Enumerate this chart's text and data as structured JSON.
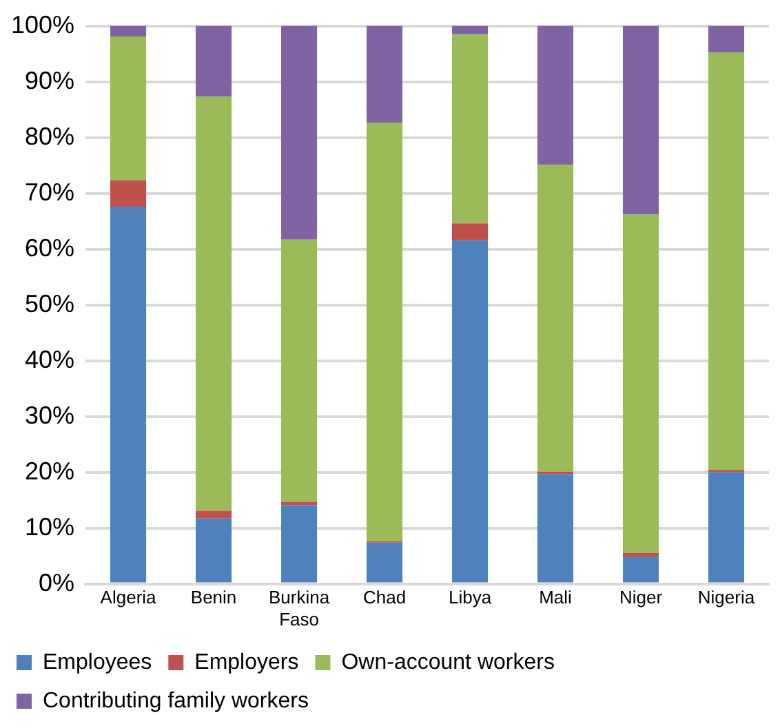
{
  "chart_data": {
    "type": "bar",
    "stacked": true,
    "categories": [
      "Algeria",
      "Benin",
      "Burkina Faso",
      "Chad",
      "Libya",
      "Mali",
      "Niger",
      "Nigeria"
    ],
    "series": [
      {
        "name": "Employees",
        "color": "#4f81bd",
        "values": [
          67.6,
          11.7,
          14.1,
          7.4,
          61.6,
          19.6,
          4.9,
          20.0
        ]
      },
      {
        "name": "Employers",
        "color": "#c0504d",
        "values": [
          4.7,
          1.4,
          0.6,
          0.2,
          3.0,
          0.5,
          0.6,
          0.4
        ]
      },
      {
        "name": "Own-account workers",
        "color": "#9bbb59",
        "values": [
          25.8,
          74.2,
          47.0,
          75.0,
          33.9,
          55.0,
          60.7,
          74.8
        ]
      },
      {
        "name": "Contributing family workers",
        "color": "#8064a2",
        "values": [
          1.9,
          12.7,
          38.3,
          17.4,
          1.5,
          24.9,
          33.8,
          4.8
        ]
      }
    ],
    "ylim": [
      0,
      100
    ],
    "yticks": [
      {
        "value": 0,
        "label": "0%"
      },
      {
        "value": 10,
        "label": "10%"
      },
      {
        "value": 20,
        "label": "20%"
      },
      {
        "value": 30,
        "label": "30%"
      },
      {
        "value": 40,
        "label": "40%"
      },
      {
        "value": 50,
        "label": "50%"
      },
      {
        "value": 60,
        "label": "60%"
      },
      {
        "value": 70,
        "label": "70%"
      },
      {
        "value": 80,
        "label": "80%"
      },
      {
        "value": 90,
        "label": "90%"
      },
      {
        "value": 100,
        "label": "100%"
      }
    ],
    "grid": "y",
    "legend": "bottom"
  }
}
